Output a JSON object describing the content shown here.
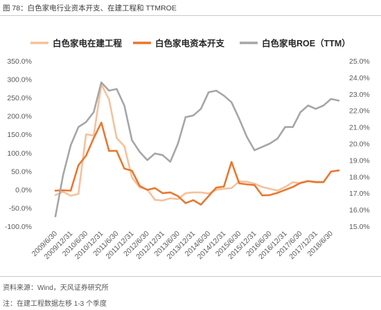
{
  "header": {
    "title": "图 78：白色家电行业资本开支、在建工程和 TTMROE"
  },
  "chart_data": {
    "type": "line",
    "legend": "top",
    "grid": false,
    "x_labels": [
      "2009/6/30",
      "2009/12/31",
      "2010/6/30",
      "2010/12/31",
      "2011/6/30",
      "2011/12/31",
      "2012/6/30",
      "2012/12/31",
      "2013/6/30",
      "2013/12/31",
      "2014/6/30",
      "2014/12/31",
      "2015/6/30",
      "2015/12/31",
      "2016/6/30",
      "2016/12/31",
      "2017/6/30",
      "2017/12/31",
      "2018/6/30"
    ],
    "y_left": {
      "min": -100,
      "max": 350,
      "unit": "%",
      "tick_labels": [
        "350.0%",
        "300.0%",
        "250.0%",
        "200.0%",
        "150.0%",
        "100.0%",
        "50.0%",
        "0.0%",
        "-50.0%",
        "-100.0%"
      ]
    },
    "y_right": {
      "min": 15,
      "max": 25,
      "unit": "%",
      "tick_labels": [
        "25.0%",
        "24.0%",
        "23.0%",
        "22.0%",
        "21.0%",
        "20.0%",
        "19.0%",
        "18.0%",
        "17.0%",
        "16.0%",
        "15.0%"
      ]
    },
    "series": [
      {
        "name": "白色家电在建工程",
        "axis": "left",
        "color": "#F6C19B",
        "values": [
          -15,
          -6,
          -17,
          -12,
          150,
          147,
          286,
          245,
          140,
          118,
          33,
          6,
          0,
          -28,
          -30,
          -24,
          -26,
          -10,
          -8,
          -8,
          -11,
          -1,
          2,
          4,
          22,
          21,
          16,
          7,
          2,
          -3,
          7,
          20,
          17,
          23,
          21,
          21,
          null,
          null
        ]
      },
      {
        "name": "白色家电资本开支",
        "axis": "left",
        "color": "#E9772F",
        "values": [
          -3,
          -2,
          -3,
          66,
          92,
          140,
          182,
          105,
          105,
          57,
          51,
          10,
          -1,
          4,
          -10,
          -8,
          -18,
          -37,
          -29,
          -41,
          -18,
          5,
          8,
          75,
          17,
          14,
          12,
          -16,
          -15,
          -9,
          -1,
          7,
          18,
          23,
          20,
          20,
          49,
          52
        ]
      },
      {
        "name": "白色家电ROE（TTM）",
        "axis": "right",
        "color": "#A6A6A6",
        "values": [
          15.6,
          18.1,
          19.9,
          21.0,
          21.3,
          21.9,
          23.7,
          23.2,
          23.3,
          22.3,
          20.2,
          19.5,
          19.0,
          19.4,
          19.3,
          18.9,
          20.0,
          21.6,
          21.7,
          22.1,
          23.1,
          23.2,
          22.9,
          22.5,
          21.5,
          20.4,
          19.6,
          19.8,
          20.0,
          20.3,
          21.0,
          21.0,
          21.9,
          22.3,
          22.1,
          22.3,
          22.7,
          22.6
        ]
      }
    ]
  },
  "footer": {
    "source": "资料来源：Wind，天风证券研究所",
    "note": "注：在建工程数据左移 1-3 个季度"
  }
}
